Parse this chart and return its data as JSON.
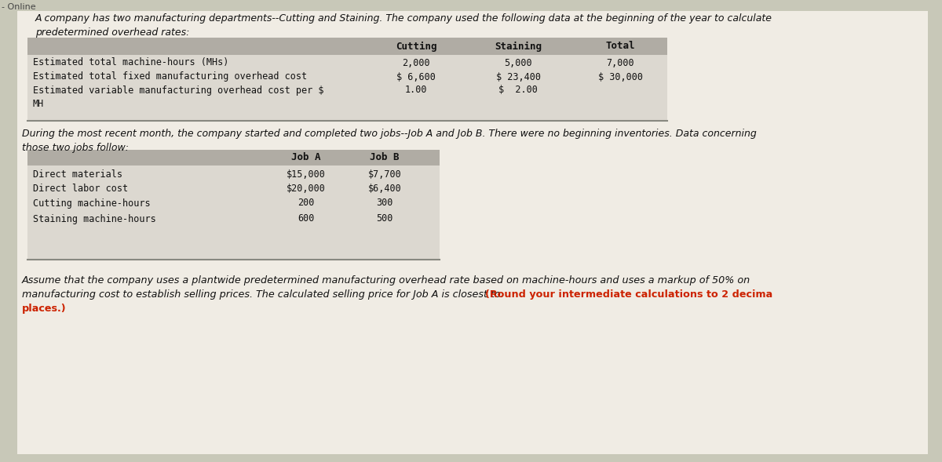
{
  "bg_color": "#c8c8b8",
  "content_bg": "#e8e4dc",
  "table_header_bg": "#b0aca4",
  "table_body_bg": "#dcd8d0",
  "intro_line1": "A company has two manufacturing departments--Cutting and Staining. The company used the following data at the beginning of the year to calculate",
  "intro_line2": "predetermined overhead rates:",
  "table1_col_headers": [
    "Cutting",
    "Staining",
    "Total"
  ],
  "table1_rows": [
    {
      "label": "Estimated total machine-hours (MHs)",
      "cutting": "2,000",
      "staining": "5,000",
      "total": "7,000"
    },
    {
      "label": "Estimated total fixed manufacturing overhead cost",
      "cutting": "$ 6,600",
      "staining": "$ 23,400",
      "total": "$ 30,000"
    },
    {
      "label": "Estimated variable manufacturing overhead cost per $",
      "cutting": "1.00",
      "staining": "$  2.00",
      "total": ""
    },
    {
      "label": "MH",
      "cutting": "",
      "staining": "",
      "total": ""
    }
  ],
  "mid_line1": "During the most recent month, the company started and completed two jobs--Job A and Job B. There were no beginning inventories. Data concerning",
  "mid_line2": "those two jobs follow:",
  "table2_col_headers": [
    "Job A",
    "Job B"
  ],
  "table2_rows": [
    {
      "label": "Direct materials",
      "job_a": "$15,000",
      "job_b": "$7,700"
    },
    {
      "label": "Direct labor cost",
      "job_a": "$20,000",
      "job_b": "$6,400"
    },
    {
      "label": "Cutting machine-hours",
      "job_a": "200",
      "job_b": "300"
    },
    {
      "label": "Staining machine-hours",
      "job_a": "600",
      "job_b": "500"
    }
  ],
  "bottom_line1": "Assume that the company uses a plantwide predetermined manufacturing overhead rate based on machine-hours and uses a markup of 50% on",
  "bottom_line2_normal": "manufacturing cost to establish selling prices. The calculated selling price for Job A is closest to: ",
  "bottom_line2_bold": "(Round your intermediate calculations to 2 decima",
  "bottom_line3": "places.)",
  "fc": "#111111",
  "red": "#cc2200"
}
